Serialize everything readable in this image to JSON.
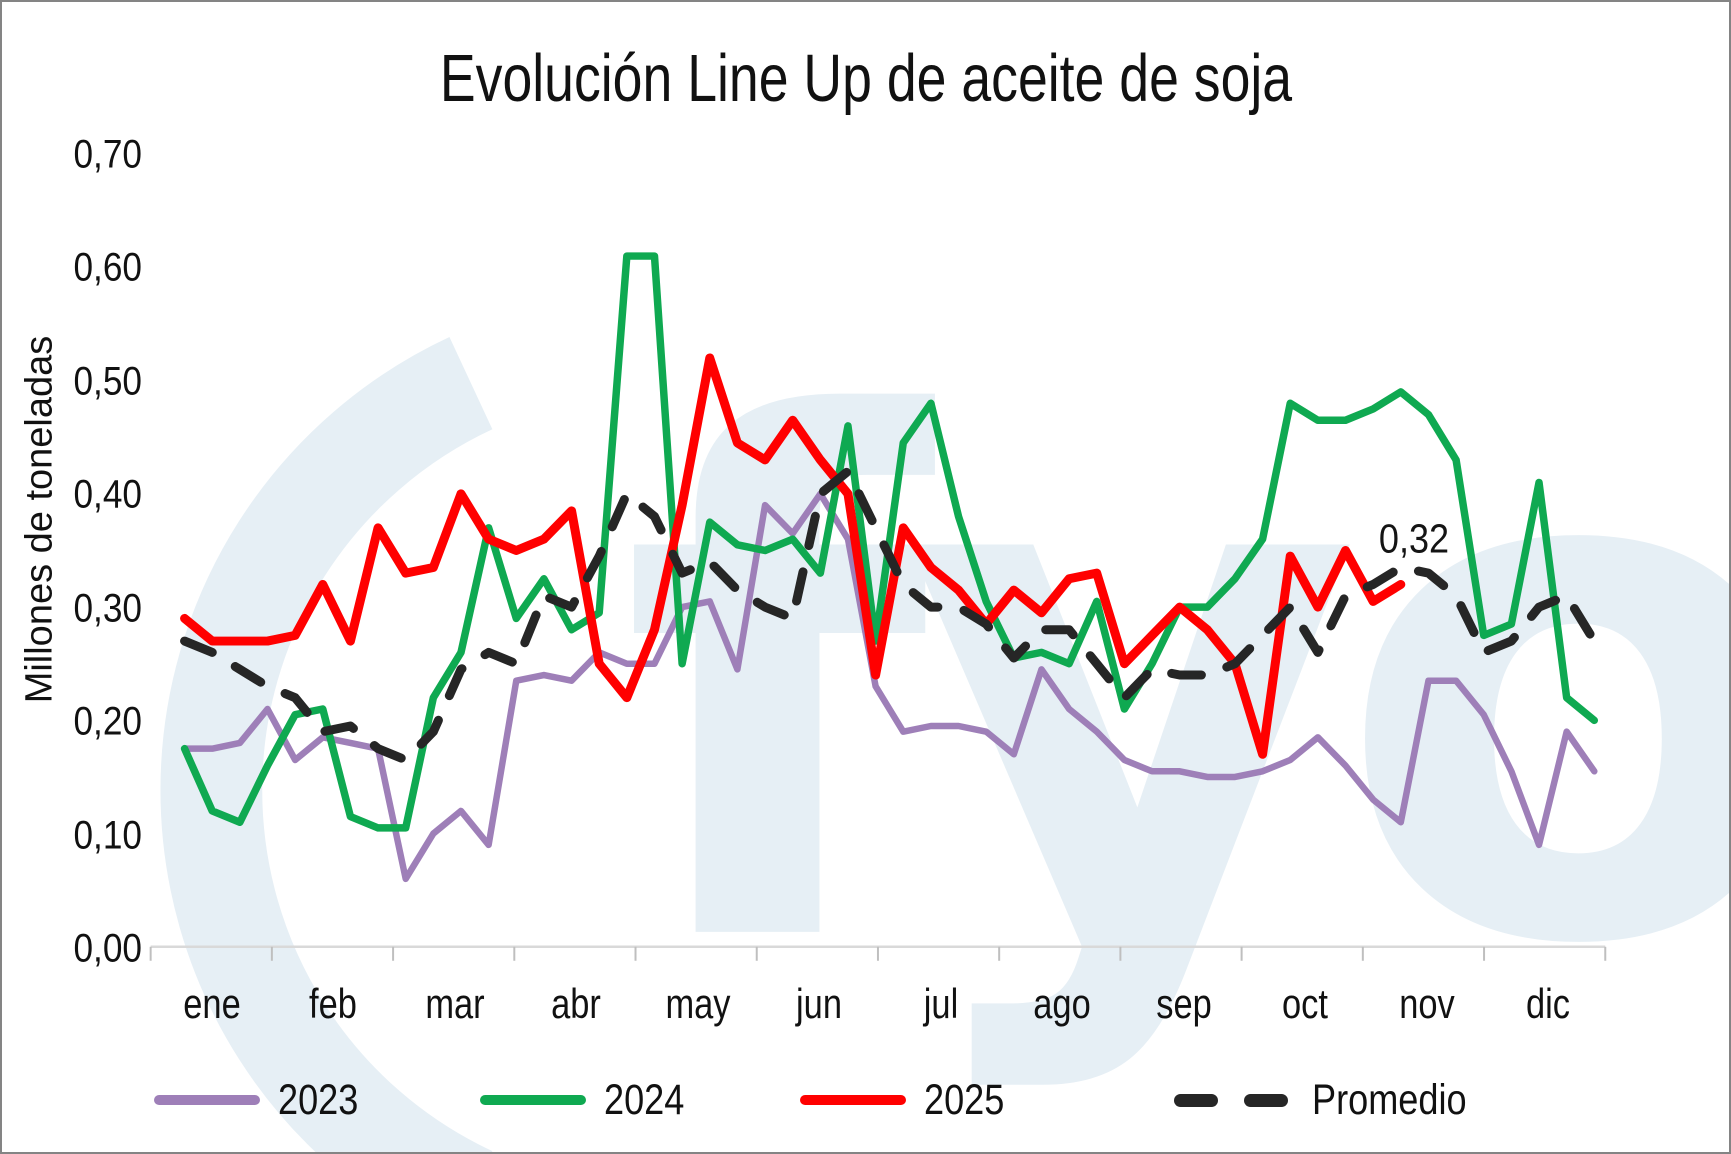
{
  "title": "Evolución Line Up de aceite de soja",
  "watermark_text": "fyo",
  "y_axis": {
    "title": "Millones de toneladas",
    "tick_labels": [
      "0,00",
      "0,10",
      "0,20",
      "0,30",
      "0,40",
      "0,50",
      "0,60",
      "0,70"
    ]
  },
  "x_axis": {
    "month_labels": [
      "ene",
      "feb",
      "mar",
      "abr",
      "may",
      "jun",
      "jul",
      "ago",
      "sep",
      "oct",
      "nov",
      "dic"
    ]
  },
  "annotation": {
    "text": "0,32",
    "series": "2025",
    "value": 0.32
  },
  "legend": [
    {
      "label": "2023"
    },
    {
      "label": "2024"
    },
    {
      "label": "2025"
    },
    {
      "label": "Promedio"
    }
  ],
  "colors": {
    "series_2023": "#9E7FB8",
    "series_2024": "#0FA951",
    "series_2025": "#FF0000",
    "series_promedio": "#262626",
    "watermark": "#E6EFF5",
    "axis_line": "#D9D9D9",
    "tick": "#BFBFBF",
    "text": "#111111"
  },
  "chart_data": {
    "type": "line",
    "title": "Evolución Line Up de aceite de soja",
    "xlabel": "",
    "ylabel": "Millones de toneladas",
    "ylim": [
      0,
      0.7
    ],
    "y_ticks": [
      0.0,
      0.1,
      0.2,
      0.3,
      0.4,
      0.5,
      0.6,
      0.7
    ],
    "x_description": "52 weekly points spanning ene–dic; 2025 series ends mid-nov (45 points)",
    "categories_months": [
      "ene",
      "feb",
      "mar",
      "abr",
      "may",
      "jun",
      "jul",
      "ago",
      "sep",
      "oct",
      "nov",
      "dic"
    ],
    "legend_position": "bottom",
    "grid": false,
    "annotation": {
      "text": "0,32",
      "week_index": 45,
      "level": 0.365
    },
    "series": [
      {
        "name": "2023",
        "color": "#9E7FB8",
        "style": "solid",
        "width": 6.5,
        "values": [
          0.175,
          0.175,
          0.18,
          0.21,
          0.165,
          0.185,
          0.18,
          0.175,
          0.06,
          0.1,
          0.12,
          0.09,
          0.235,
          0.24,
          0.235,
          0.26,
          0.25,
          0.25,
          0.3,
          0.305,
          0.245,
          0.39,
          0.365,
          0.4,
          0.36,
          0.23,
          0.19,
          0.195,
          0.195,
          0.19,
          0.17,
          0.245,
          0.21,
          0.19,
          0.165,
          0.155,
          0.155,
          0.15,
          0.15,
          0.155,
          0.165,
          0.185,
          0.16,
          0.13,
          0.11,
          0.235,
          0.235,
          0.205,
          0.155,
          0.09,
          0.19,
          0.155
        ]
      },
      {
        "name": "2024",
        "color": "#0FA951",
        "style": "solid",
        "width": 7.5,
        "values": [
          0.175,
          0.12,
          0.11,
          0.16,
          0.205,
          0.21,
          0.115,
          0.105,
          0.105,
          0.22,
          0.26,
          0.37,
          0.29,
          0.325,
          0.28,
          0.295,
          0.61,
          0.61,
          0.25,
          0.375,
          0.355,
          0.35,
          0.36,
          0.33,
          0.46,
          0.27,
          0.445,
          0.48,
          0.38,
          0.305,
          0.255,
          0.26,
          0.25,
          0.305,
          0.21,
          0.25,
          0.3,
          0.3,
          0.325,
          0.36,
          0.48,
          0.465,
          0.465,
          0.475,
          0.49,
          0.47,
          0.43,
          0.275,
          0.285,
          0.41,
          0.22,
          0.2
        ]
      },
      {
        "name": "2025",
        "color": "#FF0000",
        "style": "solid",
        "width": 9,
        "values": [
          0.29,
          0.27,
          0.27,
          0.27,
          0.275,
          0.32,
          0.27,
          0.37,
          0.33,
          0.335,
          0.4,
          0.36,
          0.35,
          0.36,
          0.385,
          0.25,
          0.22,
          0.28,
          0.39,
          0.52,
          0.445,
          0.43,
          0.465,
          0.43,
          0.4,
          0.24,
          0.37,
          0.335,
          0.315,
          0.285,
          0.315,
          0.295,
          0.325,
          0.33,
          0.25,
          0.275,
          0.3,
          0.28,
          0.25,
          0.17,
          0.345,
          0.3,
          0.35,
          0.305,
          0.32
        ]
      },
      {
        "name": "Promedio",
        "color": "#262626",
        "style": "dashed",
        "width": 9,
        "values": [
          0.27,
          0.26,
          0.245,
          0.23,
          0.22,
          0.19,
          0.195,
          0.175,
          0.165,
          0.19,
          0.245,
          0.26,
          0.25,
          0.31,
          0.3,
          0.345,
          0.4,
          0.38,
          0.33,
          0.34,
          0.315,
          0.3,
          0.29,
          0.4,
          0.42,
          0.37,
          0.32,
          0.3,
          0.3,
          0.285,
          0.255,
          0.28,
          0.28,
          0.25,
          0.22,
          0.245,
          0.24,
          0.24,
          0.25,
          0.275,
          0.3,
          0.26,
          0.31,
          0.32,
          0.335,
          0.33,
          0.31,
          0.26,
          0.27,
          0.3,
          0.31,
          0.27
        ]
      }
    ]
  }
}
